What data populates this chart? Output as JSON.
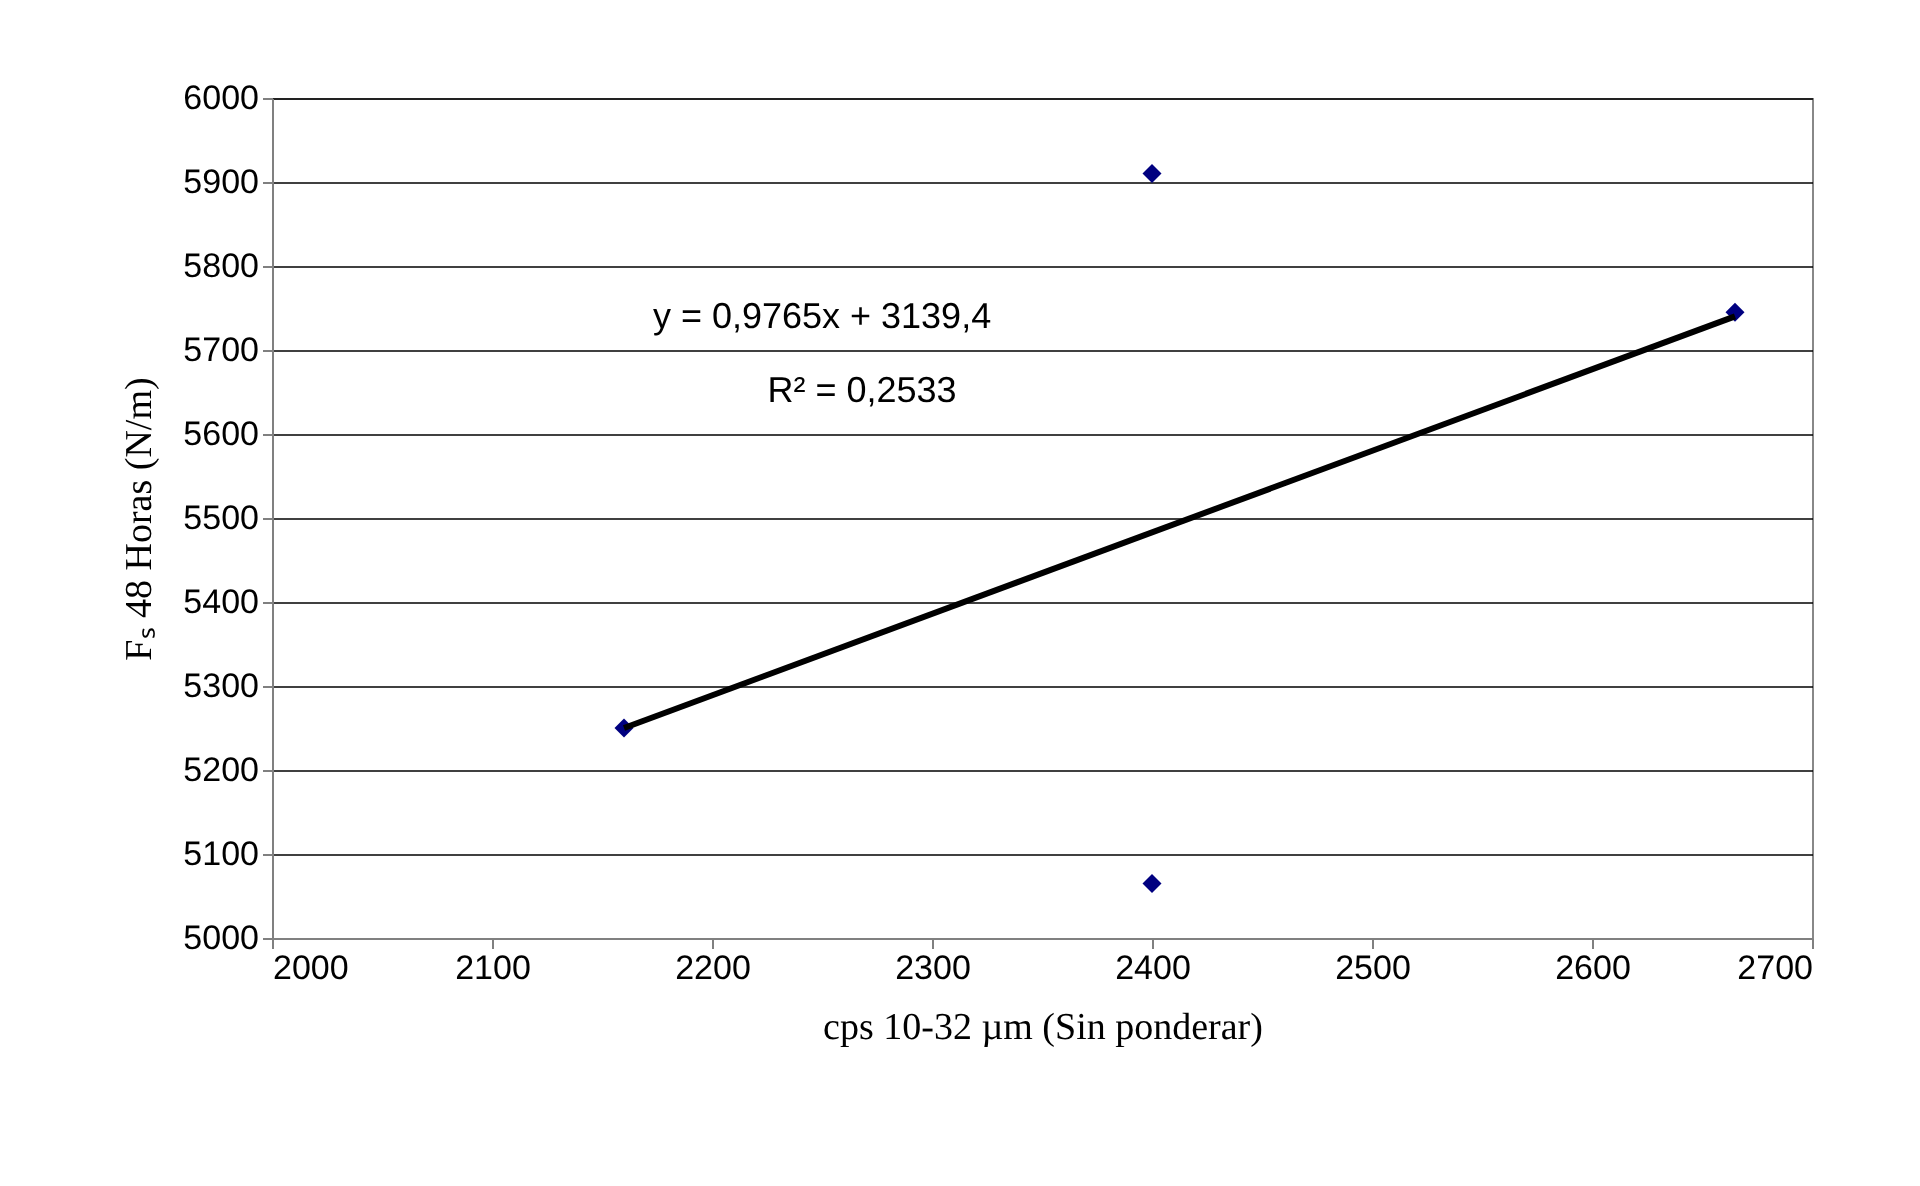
{
  "chart_data": {
    "type": "scatter",
    "xlabel": "cps 10-32 µm (Sin ponderar)",
    "ylabel": "Fₛ 48 Horas (N/m)",
    "series": [
      {
        "color": "#000080",
        "x": [
          2160,
          2400,
          2400,
          2665
        ],
        "values": [
          5250,
          5910,
          5065,
          5745
        ],
        "marker": "diamond"
      },
      {
        "type": "line",
        "color": "#000000",
        "x": [
          2160,
          2665
        ],
        "values": [
          5250,
          5740
        ],
        "line_style": "solid"
      }
    ],
    "xlim": [
      2000,
      2700
    ],
    "xticks": [
      2000,
      2100,
      2200,
      2300,
      2400,
      2500,
      2600,
      2700
    ],
    "ylim": [
      5000,
      6000
    ],
    "yticks": [
      5000,
      5100,
      5200,
      5300,
      5400,
      5500,
      5600,
      5700,
      5800,
      5900,
      6000
    ],
    "grid": "y",
    "annotations": [
      "y = 0,9765x + 3139,4",
      "R² = 0,2533"
    ]
  }
}
